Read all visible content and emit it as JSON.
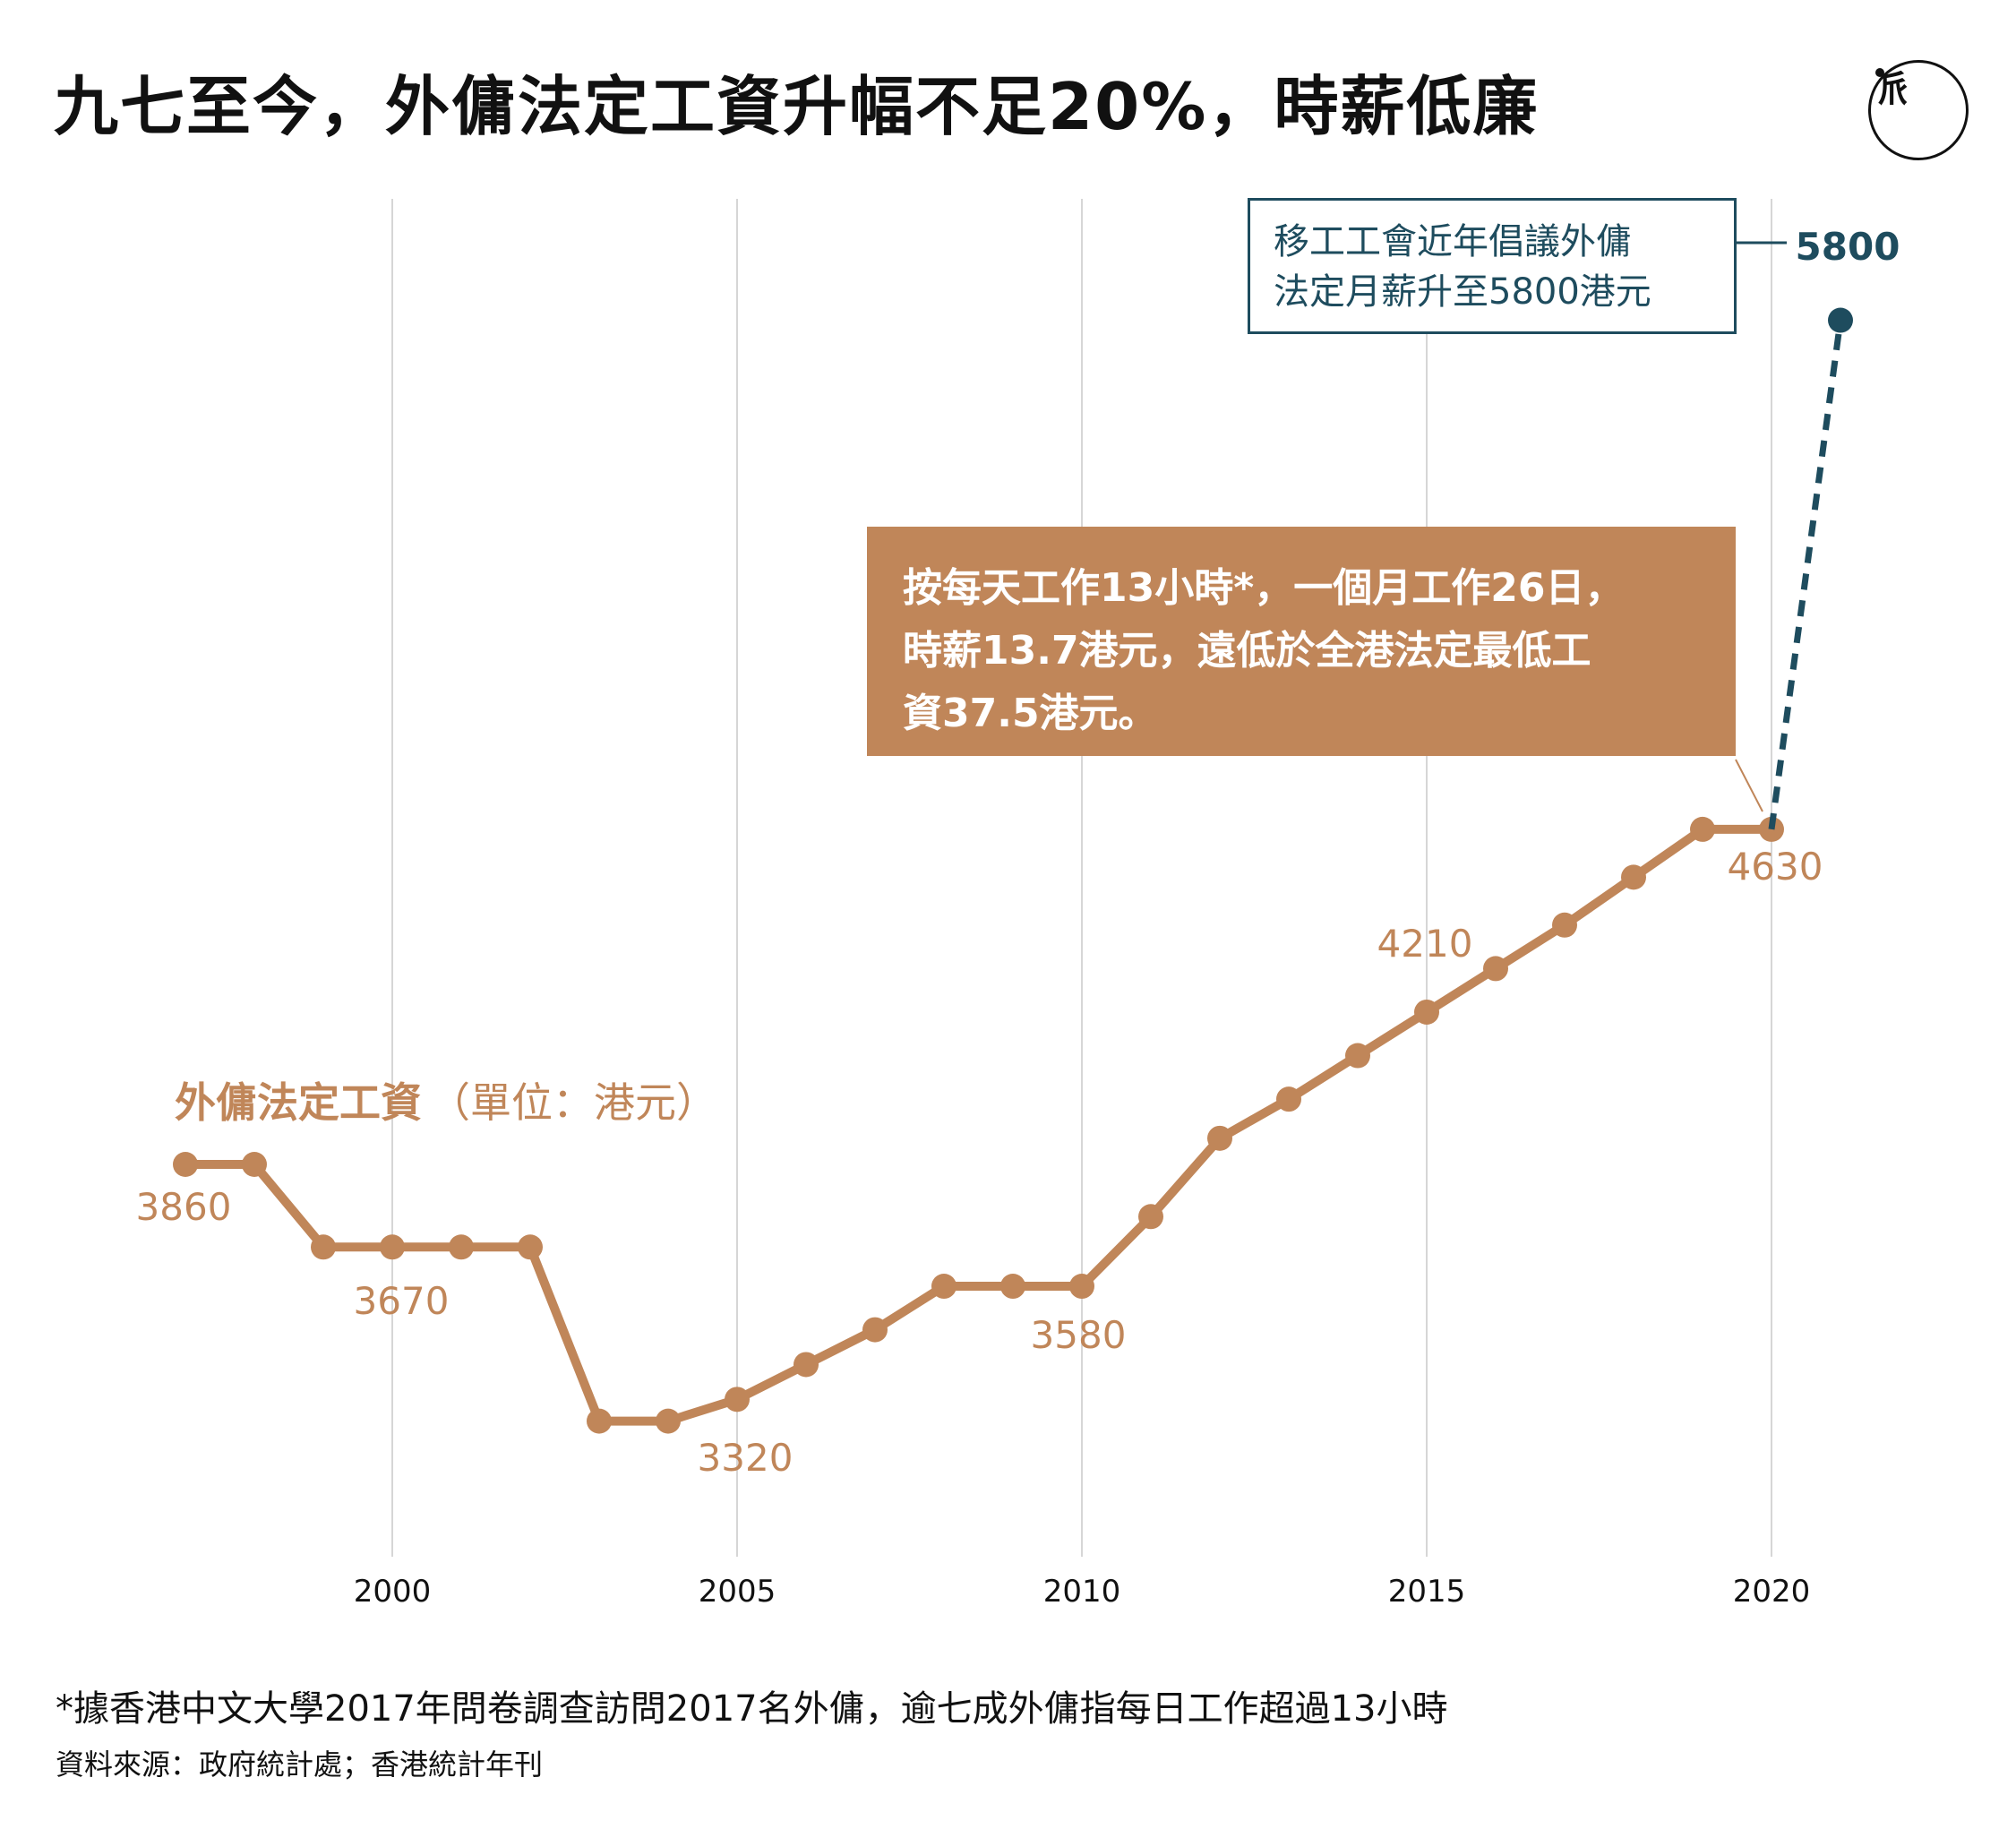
{
  "title": "九七至今，外傭法定工資升幅不足20%，時薪低廉",
  "logo": {
    "icon": "initium-logo-icon",
    "mark": "𠂢"
  },
  "series_label": {
    "name": "外傭法定工資",
    "unit": "（單位：港元）"
  },
  "note_box": {
    "lines": [
      "按每天工作13小時*，一個月工作26日，",
      "時薪13.7港元，遠低於全港法定最低工",
      "資37.5港元。"
    ]
  },
  "target_box": {
    "lines": [
      "移工工會近年倡議外傭",
      "法定月薪升至5800港元"
    ]
  },
  "footnote": "*據香港中文大學2017年問卷調查訪問2017名外傭，逾七成外傭指每日工作超過13小時",
  "source": "資料來源：政府統計處；香港統計年刊",
  "colors": {
    "series": "#c08659",
    "target": "#1e4c5e",
    "grid": "#d6d6d6",
    "text": "#111111"
  },
  "chart_data": {
    "type": "line",
    "xlabel": "",
    "ylabel": "",
    "x_ticks": [
      "2000",
      "2005",
      "2010",
      "2015",
      "2020"
    ],
    "grid": "vertical",
    "series": [
      {
        "name": "外傭法定工資",
        "points": [
          [
            1997,
            3860
          ],
          [
            1998,
            3860
          ],
          [
            1999,
            3670
          ],
          [
            2000,
            3670
          ],
          [
            2001,
            3670
          ],
          [
            2002,
            3670
          ],
          [
            2003,
            3270
          ],
          [
            2004,
            3270
          ],
          [
            2005,
            3320
          ],
          [
            2006,
            3400
          ],
          [
            2007,
            3480
          ],
          [
            2008,
            3580
          ],
          [
            2009,
            3580
          ],
          [
            2010,
            3580
          ],
          [
            2011,
            3740
          ],
          [
            2012,
            3920
          ],
          [
            2013,
            4010
          ],
          [
            2014,
            4110
          ],
          [
            2015,
            4210
          ],
          [
            2016,
            4310
          ],
          [
            2017,
            4410
          ],
          [
            2018,
            4520
          ],
          [
            2019,
            4630
          ],
          [
            2020,
            4630
          ]
        ],
        "labels": [
          {
            "x": 1997,
            "text": "3860"
          },
          {
            "x": 2000,
            "text": "3670"
          },
          {
            "x": 2005,
            "text": "3320"
          },
          {
            "x": 2010,
            "text": "3580"
          },
          {
            "x": 2015,
            "text": "4210"
          },
          {
            "x": 2020,
            "text": "4630"
          }
        ]
      },
      {
        "name": "",
        "style": "dashed",
        "points": [
          [
            2020,
            4630
          ],
          [
            2021,
            5800
          ]
        ],
        "labels": [
          {
            "x": 2021,
            "text": "5800"
          }
        ]
      }
    ]
  }
}
